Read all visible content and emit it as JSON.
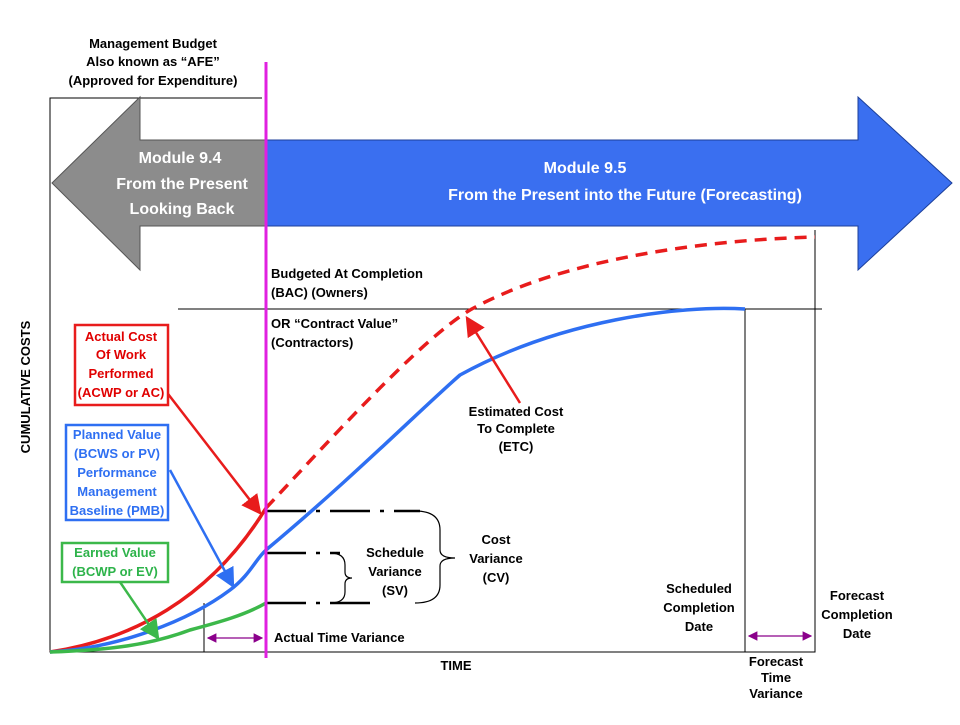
{
  "afe_label": [
    "Management Budget",
    "Also known as “AFE”",
    "(Approved for Expenditure)"
  ],
  "module_94": [
    "Module 9.4",
    "From the Present",
    "Looking Back"
  ],
  "module_95": [
    "Module 9.5",
    "From the Present into the Future (Forecasting)"
  ],
  "bac_label": [
    "Budgeted At Completion",
    "(BAC) (Owners)",
    "OR “Contract Value”",
    "(Contractors)"
  ],
  "y_axis_label": "CUMULATIVE COSTS",
  "x_axis_label": "TIME",
  "acwp_box": [
    "Actual Cost",
    "Of Work",
    "Performed",
    "(ACWP or AC)"
  ],
  "pv_box": [
    "Planned Value",
    "(BCWS or PV)",
    "Performance",
    "Management",
    "Baseline (PMB)"
  ],
  "ev_box": [
    "Earned Value",
    "(BCWP or EV)"
  ],
  "etc_label": [
    "Estimated Cost",
    "To Complete",
    "(ETC)"
  ],
  "sv_label": [
    "Schedule",
    "Variance",
    "(SV)"
  ],
  "cv_label": [
    "Cost",
    "Variance",
    "(CV)"
  ],
  "scheduled_completion": [
    "Scheduled",
    "Completion",
    "Date"
  ],
  "forecast_completion": [
    "Forecast",
    "Completion",
    "Date"
  ],
  "actual_time_variance": "Actual Time Variance",
  "forecast_time_variance": [
    "Forecast",
    "Time",
    "Variance"
  ]
}
